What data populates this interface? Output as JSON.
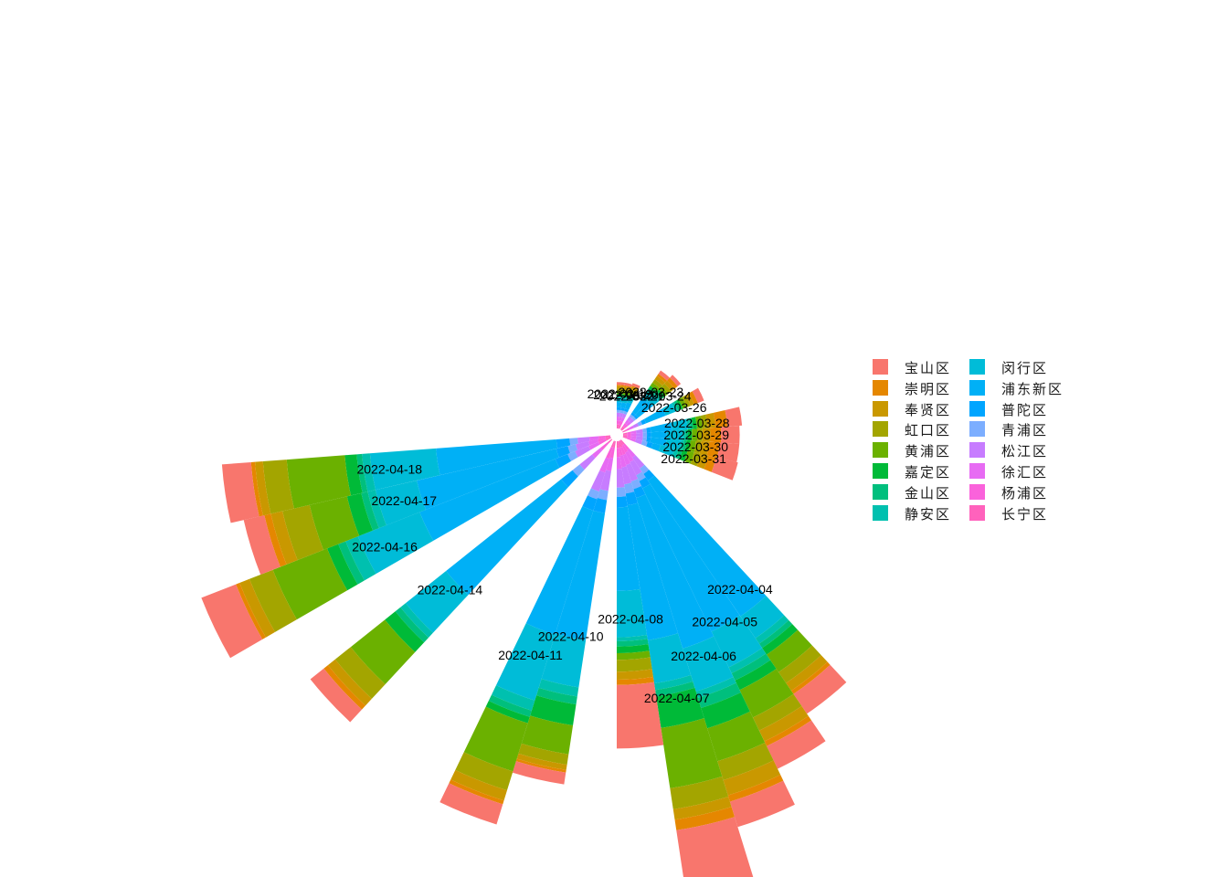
{
  "chart_data": {
    "type": "bar",
    "coord": "polar",
    "title": "",
    "xlabel": "",
    "ylabel": "",
    "legend_position": "right",
    "categories": [
      "2022-03-19",
      "2022-03-20",
      "2022-03-21",
      "2022-03-23",
      "2022-03-24",
      "2022-03-26",
      "2022-03-28",
      "2022-03-29",
      "2022-03-30",
      "2022-03-31",
      "2022-04-04",
      "2022-04-05",
      "2022-04-06",
      "2022-04-07",
      "2022-04-08",
      "2022-04-10",
      "2022-04-11",
      "2022-04-14",
      "2022-04-16",
      "2022-04-17",
      "2022-04-18"
    ],
    "series": [
      {
        "name": "宝山区",
        "color": "#F8766D",
        "values": [
          0.2,
          0.2,
          0.2,
          0.3,
          0.3,
          0.5,
          1.1,
          1.4,
          1.5,
          1.7,
          1.8,
          1.9,
          2.0,
          5.2,
          4.8,
          0.9,
          1.6,
          1.3,
          2.8,
          1.6,
          2.2
        ]
      },
      {
        "name": "崇明区",
        "color": "#E58700",
        "values": [
          0.1,
          0.1,
          0.1,
          0.2,
          0.3,
          0.3,
          0.9,
          0.8,
          0.8,
          0.6,
          0.3,
          0.4,
          0.5,
          0.8,
          0.4,
          0.2,
          0.3,
          0.4,
          0.3,
          0.5,
          0.3
        ]
      },
      {
        "name": "奉贤区",
        "color": "#C99800",
        "values": [
          0.2,
          0.2,
          0.2,
          0.3,
          0.3,
          0.3,
          0.6,
          0.6,
          0.6,
          0.6,
          0.7,
          0.9,
          1.2,
          0.8,
          0.6,
          0.4,
          0.8,
          0.7,
          0.8,
          0.9,
          0.6
        ]
      },
      {
        "name": "虹口区",
        "color": "#A3A500",
        "values": [
          0.2,
          0.2,
          0.2,
          0.3,
          0.3,
          0.3,
          0.4,
          0.4,
          0.4,
          0.5,
          1.0,
          1.1,
          1.5,
          1.6,
          0.9,
          0.8,
          1.5,
          1.5,
          1.9,
          2.1,
          1.8
        ]
      },
      {
        "name": "黄浦区",
        "color": "#6BB100",
        "values": [
          0.2,
          0.2,
          0.2,
          0.3,
          0.3,
          0.3,
          0.4,
          0.4,
          0.4,
          0.5,
          1.6,
          2.3,
          2.6,
          4.6,
          0.5,
          2.2,
          3.8,
          3.3,
          4.4,
          2.9,
          4.4
        ]
      },
      {
        "name": "嘉定区",
        "color": "#00BA38",
        "values": [
          0.1,
          0.1,
          0.1,
          0.2,
          0.2,
          0.2,
          0.3,
          0.3,
          0.3,
          0.4,
          0.6,
          0.8,
          1.6,
          2.4,
          0.5,
          1.6,
          0.5,
          1.0,
          0.9,
          1.1,
          0.9
        ]
      },
      {
        "name": "金山区",
        "color": "#00BF7D",
        "values": [
          0.1,
          0.1,
          0.1,
          0.2,
          0.2,
          0.2,
          0.2,
          0.2,
          0.2,
          0.3,
          0.4,
          0.6,
          0.8,
          0.5,
          0.4,
          0.6,
          0.5,
          0.5,
          0.6,
          0.5,
          0.4
        ]
      },
      {
        "name": "静安区",
        "color": "#00C0AF",
        "values": [
          0.1,
          0.1,
          0.1,
          0.2,
          0.2,
          0.2,
          0.2,
          0.2,
          0.2,
          0.3,
          0.5,
          0.5,
          0.5,
          0.5,
          0.3,
          0.7,
          0.8,
          0.5,
          1.0,
          0.6,
          0.6
        ]
      },
      {
        "name": "闵行区",
        "color": "#00BCD8",
        "values": [
          0.3,
          0.3,
          0.3,
          0.5,
          0.6,
          0.8,
          1.2,
          1.2,
          1.1,
          1.1,
          2.0,
          3.0,
          3.4,
          3.3,
          3.5,
          3.6,
          5.2,
          3.9,
          5.0,
          3.2,
          5.0
        ]
      },
      {
        "name": "浦东新区",
        "color": "#00B0F6",
        "values": [
          0.4,
          0.4,
          0.5,
          1.3,
          1.4,
          1.6,
          1.6,
          1.2,
          1.2,
          0.6,
          12.4,
          12.0,
          11.9,
          10.3,
          6.3,
          9.7,
          9.8,
          11.1,
          11.0,
          10.8,
          9.1
        ]
      },
      {
        "name": "普陀区",
        "color": "#00A5FF",
        "values": [
          0.2,
          0.2,
          0.2,
          0.2,
          0.2,
          0.3,
          0.3,
          0.3,
          0.3,
          0.4,
          0.6,
          0.6,
          0.7,
          0.9,
          0.8,
          1.0,
          0.9,
          1.1,
          1.0,
          0.9,
          1.0
        ]
      },
      {
        "name": "青浦区",
        "color": "#7CAEFF",
        "values": [
          0.2,
          0.2,
          0.2,
          0.2,
          0.2,
          0.3,
          0.3,
          0.3,
          0.3,
          0.4,
          0.5,
          0.5,
          0.6,
          0.7,
          0.7,
          0.7,
          0.6,
          0.7,
          0.6,
          0.6,
          0.6
        ]
      },
      {
        "name": "松江区",
        "color": "#C77CFF",
        "values": [
          0.3,
          0.3,
          0.3,
          0.3,
          0.3,
          0.4,
          0.5,
          0.5,
          0.5,
          0.5,
          1.0,
          1.1,
          1.3,
          1.3,
          1.4,
          1.5,
          1.5,
          1.2,
          1.1,
          1.0,
          0.9
        ]
      },
      {
        "name": "徐汇区",
        "color": "#E76BF3",
        "values": [
          0.3,
          0.3,
          0.3,
          0.3,
          0.3,
          0.3,
          0.4,
          0.4,
          0.4,
          0.4,
          0.7,
          0.8,
          0.8,
          0.9,
          0.9,
          1.0,
          1.1,
          0.8,
          0.8,
          0.7,
          0.7
        ]
      },
      {
        "name": "杨浦区",
        "color": "#FA62DB",
        "values": [
          0.3,
          0.3,
          0.3,
          0.3,
          0.3,
          0.3,
          0.3,
          0.3,
          0.3,
          0.3,
          0.5,
          0.6,
          0.6,
          0.6,
          0.7,
          0.8,
          0.9,
          0.7,
          0.6,
          0.6,
          0.5
        ]
      },
      {
        "name": "长宁区",
        "color": "#FF62BC",
        "values": [
          0.3,
          0.3,
          0.3,
          0.3,
          0.3,
          0.3,
          0.3,
          0.3,
          0.3,
          0.3,
          0.4,
          0.4,
          0.5,
          0.5,
          0.5,
          0.5,
          0.5,
          0.4,
          0.4,
          0.4,
          0.4
        ]
      }
    ]
  }
}
